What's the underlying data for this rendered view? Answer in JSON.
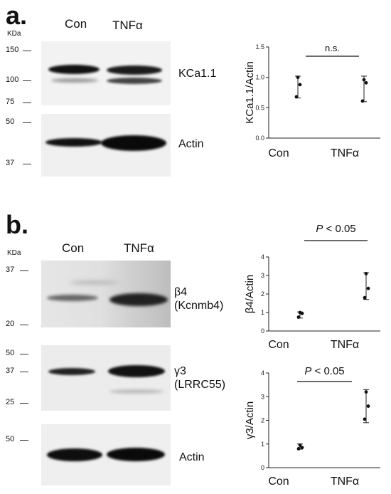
{
  "panels": {
    "a": {
      "letter": "a.",
      "kda": "KDa",
      "lanes": [
        "Con",
        "TNFα"
      ],
      "markers_top": [
        "150",
        "100",
        "75"
      ],
      "markers_bottom": [
        "50",
        "37"
      ],
      "band_labels": [
        "KCa1.1",
        "Actin"
      ]
    },
    "b": {
      "letter": "b.",
      "kda": "KDa",
      "lanes": [
        "Con",
        "TNFα"
      ],
      "markers_1": [
        "37",
        "20"
      ],
      "markers_2": [
        "50",
        "37",
        "25"
      ],
      "markers_3": [
        "50"
      ],
      "band_label_1_line1": "β4",
      "band_label_1_line2": "(Kcnmb4)",
      "band_label_2_line1": "γ3",
      "band_label_2_line2": "(LRRC55)",
      "band_label_3": "Actin"
    }
  },
  "chart_data": [
    {
      "type": "scatter",
      "categories": [
        "Con",
        "TNFα"
      ],
      "ylabel": "KCa1.1/Actin",
      "ylim": [
        0,
        1.5
      ],
      "yticks": [
        "0.0",
        "0.5",
        "1.0",
        "1.5"
      ],
      "annotation": "n.s.",
      "series": [
        {
          "points": [
            [
              0,
              1.0
            ],
            [
              0,
              0.88
            ],
            [
              0,
              0.68
            ]
          ]
        },
        {
          "points": [
            [
              1,
              0.96
            ],
            [
              1,
              0.91
            ],
            [
              1,
              0.61
            ]
          ]
        }
      ],
      "whisker_ranges": [
        [
          0.66,
          1.02
        ],
        [
          0.6,
          1.02
        ]
      ]
    },
    {
      "type": "scatter",
      "categories": [
        "Con",
        "TNFα"
      ],
      "ylabel": "β4/Actin",
      "ylim": [
        0,
        4
      ],
      "yticks": [
        "0",
        "1",
        "2",
        "3",
        "4"
      ],
      "annotation_prefix": "P",
      "annotation_suffix": " < 0.05",
      "series": [
        {
          "points": [
            [
              0,
              1.0
            ],
            [
              0,
              0.95
            ],
            [
              0,
              0.75
            ]
          ]
        },
        {
          "points": [
            [
              1,
              3.1
            ],
            [
              1,
              2.3
            ],
            [
              1,
              1.8
            ]
          ]
        }
      ],
      "whisker_ranges": [
        [
          0.7,
          1.03
        ],
        [
          1.7,
          3.15
        ]
      ]
    },
    {
      "type": "scatter",
      "categories": [
        "Con",
        "TNFα"
      ],
      "ylabel": "γ3/Actin",
      "ylim": [
        0,
        4
      ],
      "yticks": [
        "0",
        "1",
        "2",
        "3",
        "4"
      ],
      "annotation_prefix": "P",
      "annotation_suffix": " < 0.05",
      "series": [
        {
          "points": [
            [
              0,
              0.95
            ],
            [
              0,
              0.85
            ],
            [
              0,
              0.8
            ]
          ]
        },
        {
          "points": [
            [
              1,
              3.2
            ],
            [
              1,
              2.6
            ],
            [
              1,
              2.05
            ]
          ]
        }
      ],
      "whisker_ranges": [
        [
          0.78,
          1.0
        ],
        [
          1.9,
          3.3
        ]
      ]
    }
  ]
}
